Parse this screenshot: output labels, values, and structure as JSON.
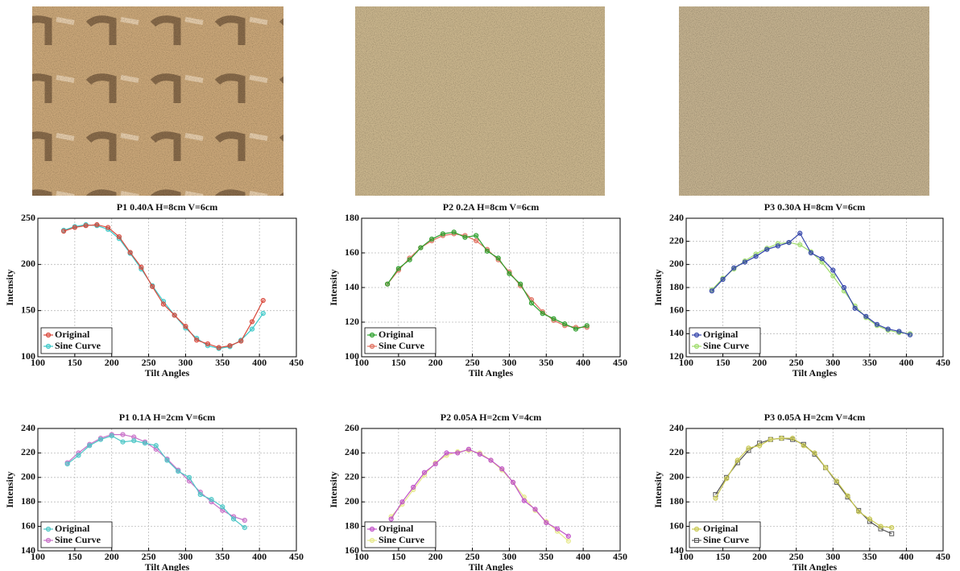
{
  "chart_data": [
    {
      "type": "line",
      "title": "P1 0.40A H=8cm V=6cm",
      "xlabel": "Tilt Angles",
      "ylabel": "Intensity",
      "x": [
        135,
        150,
        165,
        180,
        195,
        210,
        225,
        240,
        255,
        270,
        285,
        300,
        315,
        330,
        345,
        360,
        375,
        390,
        405
      ],
      "series": [
        {
          "name": "Original",
          "color": "#d9483b",
          "marker": "circle",
          "values": [
            236,
            240,
            242,
            243,
            240,
            230,
            213,
            197,
            176,
            157,
            145,
            133,
            118,
            114,
            110,
            112,
            117,
            138,
            161
          ]
        },
        {
          "name": "Sine Curve",
          "color": "#3cc8c8",
          "marker": "circle",
          "values": [
            237,
            241,
            243,
            242,
            238,
            228,
            212,
            195,
            177,
            160,
            145,
            131,
            120,
            112,
            109,
            111,
            118,
            130,
            147
          ]
        }
      ],
      "xlim": [
        100,
        450
      ],
      "xticks": [
        100,
        150,
        200,
        250,
        300,
        350,
        400,
        450
      ],
      "ylim": [
        100,
        250
      ],
      "yticks": [
        100,
        150,
        200,
        250
      ],
      "grid": true,
      "legend": "lower left"
    },
    {
      "type": "line",
      "title": "P2 0.2A H=8cm V=6cm",
      "xlabel": "Tilt Angles",
      "ylabel": "Intensity",
      "x": [
        135,
        150,
        165,
        180,
        195,
        210,
        225,
        240,
        255,
        270,
        285,
        300,
        315,
        330,
        345,
        360,
        375,
        390,
        405
      ],
      "series": [
        {
          "name": "Original",
          "color": "#2ca02c",
          "marker": "circle",
          "values": [
            142,
            151,
            156,
            163,
            168,
            171,
            172,
            169,
            170,
            161,
            157,
            148,
            142,
            131,
            125,
            122,
            119,
            116,
            118
          ]
        },
        {
          "name": "Sine Curve",
          "color": "#e07060",
          "marker": "circle",
          "values": [
            142,
            150,
            157,
            163,
            167,
            170,
            171,
            170,
            167,
            162,
            156,
            149,
            141,
            133,
            126,
            121,
            118,
            117,
            117
          ]
        }
      ],
      "xlim": [
        100,
        450
      ],
      "xticks": [
        100,
        150,
        200,
        250,
        300,
        350,
        400,
        450
      ],
      "ylim": [
        100,
        180
      ],
      "yticks": [
        100,
        120,
        140,
        160,
        180
      ],
      "grid": true,
      "legend": "lower left"
    },
    {
      "type": "line",
      "title": "P3 0.30A H=8cm V=6cm",
      "xlabel": "Tilt Angles",
      "ylabel": "Intensity",
      "x": [
        135,
        150,
        165,
        180,
        195,
        210,
        225,
        240,
        255,
        270,
        285,
        300,
        315,
        330,
        345,
        360,
        375,
        390,
        405
      ],
      "series": [
        {
          "name": "Original",
          "color": "#3344aa",
          "marker": "circle",
          "values": [
            177,
            187,
            197,
            202,
            207,
            213,
            216,
            219,
            227,
            210,
            205,
            195,
            180,
            162,
            155,
            148,
            144,
            142,
            139
          ]
        },
        {
          "name": "Sine Curve",
          "color": "#9fdc6c",
          "marker": "circle",
          "values": [
            178,
            188,
            196,
            203,
            209,
            214,
            218,
            219,
            217,
            211,
            202,
            190,
            177,
            164,
            154,
            147,
            143,
            141,
            140
          ]
        }
      ],
      "xlim": [
        100,
        450
      ],
      "xticks": [
        100,
        150,
        200,
        250,
        300,
        350,
        400,
        450
      ],
      "ylim": [
        120,
        240
      ],
      "yticks": [
        120,
        140,
        160,
        180,
        200,
        220,
        240
      ],
      "grid": true,
      "legend": "lower left"
    },
    {
      "type": "line",
      "title": "P1 0.1A H=2cm V=6cm",
      "xlabel": "Tilt Angles",
      "ylabel": "Intensity",
      "x": [
        140,
        155,
        170,
        185,
        200,
        215,
        230,
        245,
        260,
        275,
        290,
        305,
        320,
        335,
        350,
        365,
        380
      ],
      "series": [
        {
          "name": "Original",
          "color": "#4cc6c6",
          "marker": "circle",
          "values": [
            211,
            218,
            226,
            231,
            234,
            229,
            230,
            228,
            226,
            214,
            205,
            200,
            186,
            182,
            176,
            166,
            159
          ]
        },
        {
          "name": "Sine Curve",
          "color": "#c870c8",
          "marker": "circle",
          "values": [
            212,
            220,
            227,
            232,
            235,
            235,
            233,
            229,
            223,
            215,
            206,
            197,
            188,
            180,
            173,
            168,
            165
          ]
        }
      ],
      "xlim": [
        100,
        450
      ],
      "xticks": [
        100,
        150,
        200,
        250,
        300,
        350,
        400,
        450
      ],
      "ylim": [
        140,
        240
      ],
      "yticks": [
        140,
        160,
        180,
        200,
        220,
        240
      ],
      "grid": true,
      "legend": "lower left"
    },
    {
      "type": "line",
      "title": "P2 0.05A H=2cm V=4cm",
      "xlabel": "Tilt Angles",
      "ylabel": "Intensity",
      "x": [
        140,
        155,
        170,
        185,
        200,
        215,
        230,
        245,
        260,
        275,
        290,
        305,
        320,
        335,
        350,
        365,
        380
      ],
      "series": [
        {
          "name": "Original",
          "color": "#c050c8",
          "marker": "circle",
          "values": [
            186,
            200,
            212,
            224,
            231,
            240,
            240,
            243,
            239,
            234,
            227,
            216,
            201,
            194,
            183,
            178,
            172
          ]
        },
        {
          "name": "Sine Curve",
          "color": "#e6e88a",
          "marker": "circle",
          "values": [
            188,
            198,
            210,
            222,
            232,
            238,
            241,
            242,
            240,
            234,
            226,
            216,
            204,
            193,
            184,
            176,
            168
          ]
        }
      ],
      "xlim": [
        100,
        450
      ],
      "xticks": [
        100,
        150,
        200,
        250,
        300,
        350,
        400,
        450
      ],
      "ylim": [
        160,
        260
      ],
      "yticks": [
        160,
        180,
        200,
        220,
        240,
        260
      ],
      "grid": true,
      "legend": "lower left"
    },
    {
      "type": "line",
      "title": "P3 0.05A H=2cm V=4cm",
      "xlabel": "Tilt Angles",
      "ylabel": "Intensity",
      "x": [
        140,
        155,
        170,
        185,
        200,
        215,
        230,
        245,
        260,
        275,
        290,
        305,
        320,
        335,
        350,
        365,
        380
      ],
      "series": [
        {
          "name": "Original",
          "color": "#c8c850",
          "marker": "circle",
          "values": [
            183,
            199,
            214,
            224,
            226,
            231,
            232,
            232,
            226,
            220,
            208,
            197,
            185,
            172,
            166,
            160,
            159
          ]
        },
        {
          "name": "Sine Curve",
          "color": "#555555",
          "marker": "square",
          "values": [
            186,
            200,
            212,
            222,
            228,
            231,
            232,
            231,
            227,
            219,
            208,
            196,
            184,
            173,
            164,
            158,
            154
          ]
        }
      ],
      "xlim": [
        100,
        450
      ],
      "xticks": [
        100,
        150,
        200,
        250,
        300,
        350,
        400,
        450
      ],
      "ylim": [
        140,
        240
      ],
      "yticks": [
        140,
        160,
        180,
        200,
        220,
        240
      ],
      "grid": true,
      "legend": "lower left"
    }
  ]
}
